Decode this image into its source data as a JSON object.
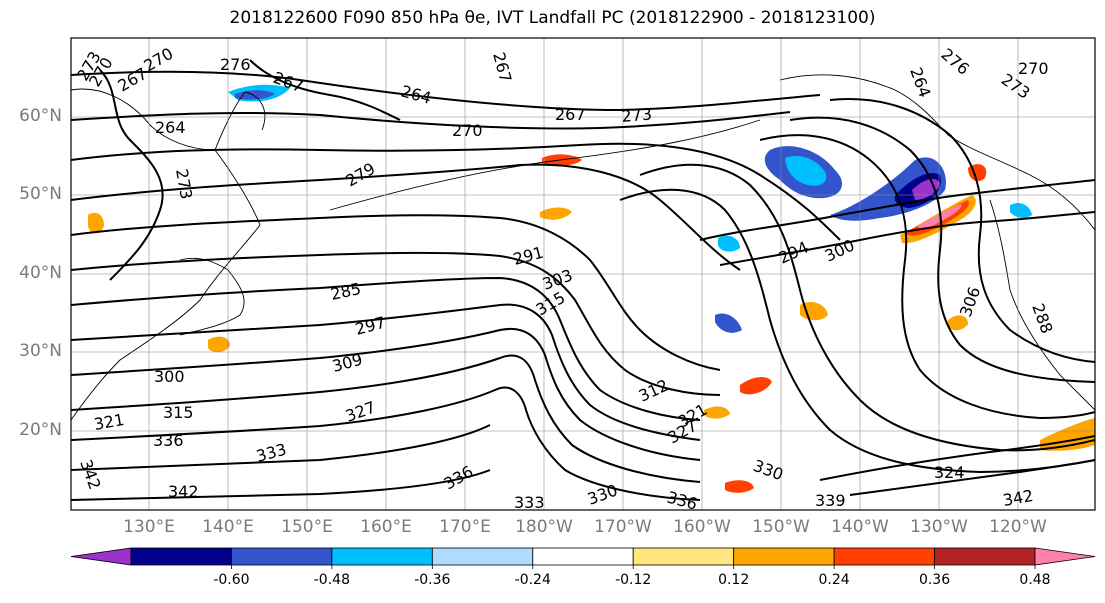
{
  "title": "2018122600 F090 850 hPa θe, IVT Landfall PC (2018122900 - 2018123100)",
  "lat_labels": [
    "60°N",
    "50°N",
    "40°N",
    "30°N",
    "20°N"
  ],
  "lon_labels": [
    "130°E",
    "140°E",
    "150°E",
    "160°E",
    "170°E",
    "180°W",
    "170°W",
    "160°W",
    "150°W",
    "140°W",
    "130°W",
    "120°W"
  ],
  "colorbar": {
    "colors": [
      "#9933cc",
      "#00008b",
      "#3355cc",
      "#00bfff",
      "#aedcff",
      "#ffffff",
      "#ffe680",
      "#ffa500",
      "#ff4000",
      "#b22222",
      "#ff80a8"
    ],
    "tick_labels": [
      "-0.60",
      "-0.48",
      "-0.36",
      "-0.24",
      "-0.12",
      "0.12",
      "0.24",
      "0.36",
      "0.48",
      "0.60"
    ]
  },
  "contour_labels": [
    "273",
    "270",
    "267",
    "270",
    "267",
    "264",
    "264",
    "267",
    "270",
    "273",
    "267",
    "276",
    "270",
    "273",
    "264",
    "273",
    "279",
    "276",
    "291",
    "303",
    "315",
    "294",
    "300",
    "285",
    "297",
    "309",
    "300",
    "315",
    "321",
    "336",
    "327",
    "327",
    "312",
    "321",
    "324",
    "306",
    "288",
    "342",
    "333",
    "336",
    "330",
    "336",
    "339",
    "342",
    "330",
    "333",
    "342"
  ]
}
